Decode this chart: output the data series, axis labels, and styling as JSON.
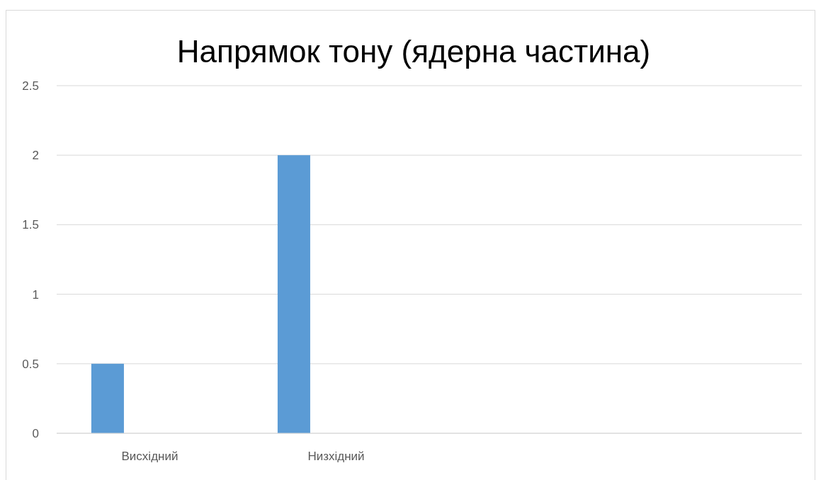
{
  "chart_data": {
    "type": "bar",
    "title": "Напрямок тону (ядерна частина)",
    "categories": [
      "Висхідний",
      "Низхідний",
      null,
      null
    ],
    "values": [
      0.5,
      2,
      null,
      null
    ],
    "color": "#5b9bd5",
    "ylim": [
      0,
      2.5
    ],
    "yticks": [
      0,
      0.5,
      1,
      1.5,
      2,
      2.5
    ],
    "grid": "y"
  }
}
